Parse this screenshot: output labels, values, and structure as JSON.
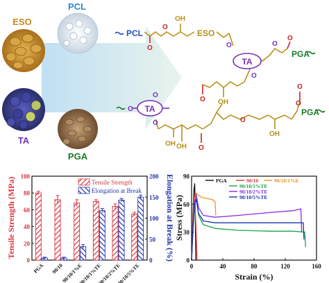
{
  "scheme": {
    "materials": {
      "eso": "ESO",
      "pcl": "PCL",
      "ta": "TA",
      "pga": "PGA"
    },
    "structure": {
      "pcl": "PCL",
      "eso": "ESO",
      "pga_top": "PGA",
      "pga_bottom": "PGA",
      "ta_top": "TA",
      "ta_mid": "TA",
      "oh_labels": [
        "OH",
        "OH",
        "OH",
        "OH",
        "OH"
      ],
      "o_labels": [
        "O",
        "O",
        "O",
        "O",
        "O",
        "O",
        "O",
        "O",
        "O",
        "O",
        "O",
        "O",
        "O",
        "O"
      ],
      "colors": {
        "chain_gold": "#b8901a",
        "pcl_blue": "#1e50c8",
        "ester_red": "#cc2020",
        "pga_green": "#1a7a2a",
        "ta_purple": "#7a2fbd"
      }
    }
  },
  "chart_data": [
    {
      "type": "bar",
      "categories": [
        "PGA",
        "90/10",
        "90/10/1%E",
        "90/10/1%TE",
        "90/10/2%TE",
        "90/10/5%TE"
      ],
      "series": [
        {
          "name": "Tensile Strength",
          "axis": "left",
          "values": [
            80,
            72,
            68,
            70,
            64,
            55
          ],
          "errors": [
            2,
            5,
            4,
            2,
            3,
            2
          ],
          "color": "#d9333f",
          "pattern": "hatch"
        },
        {
          "name": "Elongation at Break",
          "axis": "right",
          "values": [
            5,
            5,
            32,
            118,
            143,
            150
          ],
          "errors": [
            2,
            2,
            5,
            5,
            4,
            5
          ],
          "color": "#2233aa",
          "pattern": "hatch"
        }
      ],
      "ylabel": "Tensile Strength (MPa)",
      "ylim": [
        0,
        100
      ],
      "yticks": [
        "0",
        "20",
        "40",
        "60",
        "80",
        "100"
      ],
      "y2label": "Elongation at Break (%)",
      "y2lim": [
        0,
        200
      ],
      "y2ticks": [
        "0",
        "50",
        "100",
        "150",
        "200"
      ],
      "legend_placement": "top-right"
    },
    {
      "type": "line",
      "xlabel": "Strain (%)",
      "ylabel": "Stress (MPa)",
      "xlim": [
        0,
        160
      ],
      "ylim": [
        0,
        90
      ],
      "xticks": [
        "0",
        "40",
        "80",
        "120",
        "160"
      ],
      "yticks": [
        "0",
        "30",
        "60",
        "90"
      ],
      "legend_placement": "top",
      "series": [
        {
          "name": "PGA",
          "color": "#111111",
          "x": [
            0,
            1,
            2,
            3,
            4,
            4.5,
            5,
            5.5
          ],
          "y": [
            0,
            25,
            55,
            75,
            82,
            65,
            30,
            0
          ]
        },
        {
          "name": "90/10",
          "color": "#e23a3a",
          "x": [
            0,
            1,
            2,
            3,
            3.5,
            4,
            5,
            6,
            7
          ],
          "y": [
            0,
            20,
            45,
            65,
            70,
            62,
            50,
            25,
            0
          ]
        },
        {
          "name": "90/10/1%E",
          "color": "#e8961e",
          "x": [
            0,
            2,
            4,
            6,
            8,
            14,
            20,
            26,
            30,
            31
          ],
          "y": [
            0,
            40,
            66,
            72,
            70,
            67,
            66,
            65,
            63,
            48
          ]
        },
        {
          "name": "90/10/1%TE",
          "color": "#1aa34a",
          "x": [
            0,
            2,
            4,
            6,
            9,
            15,
            30,
            60,
            100,
            130,
            145,
            146
          ],
          "y": [
            0,
            35,
            62,
            66,
            48,
            38,
            34,
            32,
            31,
            31,
            30,
            14
          ]
        },
        {
          "name": "90/10/2%TE",
          "color": "#8a2be2",
          "x": [
            0,
            2,
            4,
            6,
            9,
            15,
            30,
            60,
            100,
            130,
            140,
            141
          ],
          "y": [
            0,
            40,
            63,
            70,
            56,
            48,
            46,
            48,
            51,
            53,
            55,
            30
          ]
        },
        {
          "name": "90/10/5%TE",
          "color": "#1535a8",
          "x": [
            0,
            2,
            4,
            6,
            9,
            15,
            30,
            60,
            100,
            130,
            143,
            144
          ],
          "y": [
            0,
            38,
            60,
            65,
            50,
            42,
            40,
            40,
            40,
            40,
            40,
            22
          ]
        }
      ]
    }
  ]
}
